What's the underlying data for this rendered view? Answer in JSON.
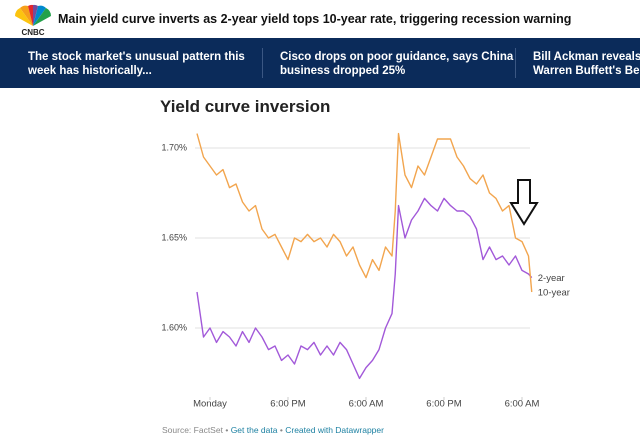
{
  "header": {
    "logo": "CNBC",
    "headline": "Main yield curve inverts as 2-year yield tops 10-year rate, triggering recession warning"
  },
  "ticker": [
    [
      "The stock market's unusual pattern this",
      "week has historically..."
    ],
    [
      "Cisco drops on poor guidance, says China",
      "business dropped 25%"
    ],
    [
      "Bill Ackman reveals a",
      "Warren Buffett's Berk"
    ]
  ],
  "chart_data": {
    "type": "line",
    "title": "Yield curve inversion",
    "x": [
      -2,
      -1,
      0,
      1,
      2,
      3,
      4,
      5,
      6,
      7,
      8,
      9,
      10,
      11,
      12,
      13,
      14,
      15,
      16,
      17,
      18,
      19,
      20,
      21,
      22,
      23,
      24,
      25,
      26,
      27,
      28,
      28.5,
      29,
      30,
      31,
      32,
      33,
      34,
      35,
      36,
      37,
      38,
      39,
      40,
      41,
      42,
      43,
      44,
      45,
      46,
      47,
      48,
      49,
      49.5
    ],
    "series": [
      {
        "name": "2-year",
        "color": "#a259d9",
        "values": [
          1.62,
          1.595,
          1.6,
          1.592,
          1.598,
          1.595,
          1.59,
          1.598,
          1.592,
          1.6,
          1.595,
          1.588,
          1.59,
          1.582,
          1.585,
          1.58,
          1.59,
          1.588,
          1.592,
          1.585,
          1.59,
          1.585,
          1.592,
          1.588,
          1.58,
          1.572,
          1.578,
          1.582,
          1.588,
          1.6,
          1.608,
          1.63,
          1.668,
          1.65,
          1.66,
          1.665,
          1.672,
          1.668,
          1.665,
          1.672,
          1.668,
          1.665,
          1.665,
          1.662,
          1.655,
          1.638,
          1.645,
          1.638,
          1.64,
          1.635,
          1.64,
          1.632,
          1.63,
          1.628
        ]
      },
      {
        "name": "10-year",
        "color": "#f2a54e",
        "values": [
          1.708,
          1.695,
          1.69,
          1.685,
          1.688,
          1.678,
          1.68,
          1.67,
          1.665,
          1.668,
          1.655,
          1.65,
          1.652,
          1.645,
          1.638,
          1.65,
          1.648,
          1.652,
          1.648,
          1.65,
          1.645,
          1.652,
          1.648,
          1.64,
          1.645,
          1.635,
          1.628,
          1.638,
          1.632,
          1.645,
          1.64,
          1.665,
          1.708,
          1.685,
          1.678,
          1.69,
          1.685,
          1.695,
          1.705,
          1.705,
          1.705,
          1.695,
          1.69,
          1.683,
          1.68,
          1.685,
          1.675,
          1.672,
          1.665,
          1.668,
          1.65,
          1.648,
          1.64,
          1.62
        ]
      }
    ],
    "xlim": [
      -2.5,
      50
    ],
    "xticks": [
      {
        "value": 0,
        "label": "Monday"
      },
      {
        "value": 12,
        "label": "6:00 PM"
      },
      {
        "value": 24,
        "label": "6:00 AM"
      },
      {
        "value": 36,
        "label": "6:00 PM"
      },
      {
        "value": 48,
        "label": "6:00 AM"
      }
    ],
    "ylim": [
      1.56,
      1.71
    ],
    "yticks": [
      {
        "value": 1.6,
        "label": "1.60%"
      },
      {
        "value": 1.65,
        "label": "1.65%"
      },
      {
        "value": 1.7,
        "label": "1.70%"
      }
    ],
    "grid": true
  },
  "footer": {
    "source": "Source: FactSet",
    "separator": "•",
    "links": [
      "Get the data",
      "Created with Datawrapper"
    ]
  }
}
